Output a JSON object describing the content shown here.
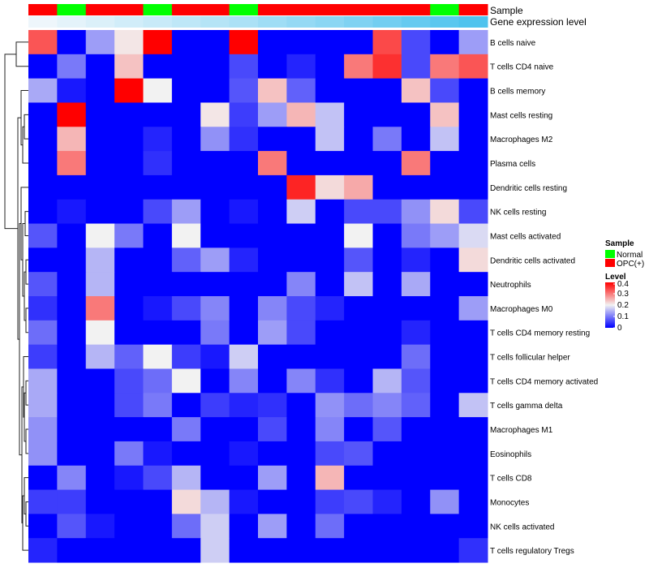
{
  "chart_data": {
    "type": "heatmap",
    "annotation_labels": {
      "sample": "Sample",
      "gene_level": "Gene expression level"
    },
    "sample_groups": [
      "OPC(+)",
      "Normal",
      "OPC(+)",
      "OPC(+)",
      "Normal",
      "OPC(+)",
      "OPC(+)",
      "Normal",
      "OPC(+)",
      "OPC(+)",
      "OPC(+)",
      "OPC(+)",
      "OPC(+)",
      "OPC(+)",
      "Normal",
      "OPC(+)"
    ],
    "gene_expression_level": [
      0.0,
      0.06,
      0.12,
      0.18,
      0.24,
      0.3,
      0.36,
      0.42,
      0.5,
      0.56,
      0.62,
      0.7,
      0.78,
      0.86,
      0.93,
      1.0
    ],
    "rows": [
      "B cells naive",
      "T cells CD4 naive",
      "B cells memory",
      "Mast cells resting",
      "Macrophages M2",
      "Plasma cells",
      "Dendritic cells resting",
      "NK cells resting",
      "Mast cells activated",
      "Dendritic cells activated",
      "Neutrophils",
      "Macrophages M0",
      "T cells CD4 memory resting",
      "T cells follicular helper",
      "T cells CD4 memory activated",
      "T cells gamma delta",
      "Macrophages M1",
      "Eosinophils",
      "T cells CD8",
      "Monocytes",
      "NK cells activated",
      "T cells regulatory  Tregs"
    ],
    "values": [
      [
        0.33,
        0.0,
        0.13,
        0.21,
        0.4,
        0.0,
        0.0,
        0.4,
        0.0,
        0.0,
        0.0,
        0.0,
        0.34,
        0.06,
        0.0,
        0.13
      ],
      [
        0.0,
        0.1,
        0.0,
        0.24,
        0.0,
        0.0,
        0.0,
        0.06,
        0.0,
        0.03,
        0.0,
        0.3,
        0.36,
        0.06,
        0.3,
        0.33
      ],
      [
        0.14,
        0.02,
        0.0,
        0.4,
        0.2,
        0.0,
        0.0,
        0.07,
        0.24,
        0.08,
        0.0,
        0.0,
        0.0,
        0.24,
        0.06,
        0.0
      ],
      [
        0.0,
        0.4,
        0.0,
        0.0,
        0.0,
        0.0,
        0.21,
        0.05,
        0.13,
        0.25,
        0.16,
        0.0,
        0.0,
        0.0,
        0.24,
        0.0
      ],
      [
        0.0,
        0.25,
        0.0,
        0.0,
        0.03,
        0.0,
        0.12,
        0.04,
        0.0,
        0.0,
        0.16,
        0.0,
        0.1,
        0.0,
        0.16,
        0.0
      ],
      [
        0.0,
        0.3,
        0.0,
        0.0,
        0.04,
        0.0,
        0.0,
        0.0,
        0.3,
        0.0,
        0.0,
        0.0,
        0.0,
        0.3,
        0.0,
        0.0
      ],
      [
        0.0,
        0.0,
        0.0,
        0.0,
        0.0,
        0.0,
        0.0,
        0.0,
        0.0,
        0.37,
        0.22,
        0.26,
        0.0,
        0.0,
        0.0,
        0.0
      ],
      [
        0.0,
        0.02,
        0.0,
        0.0,
        0.06,
        0.13,
        0.0,
        0.02,
        0.0,
        0.17,
        0.0,
        0.06,
        0.06,
        0.12,
        0.22,
        0.06
      ],
      [
        0.07,
        0.0,
        0.2,
        0.1,
        0.0,
        0.2,
        0.0,
        0.0,
        0.0,
        0.0,
        0.0,
        0.2,
        0.0,
        0.1,
        0.13,
        0.18
      ],
      [
        0.0,
        0.0,
        0.15,
        0.0,
        0.0,
        0.08,
        0.13,
        0.03,
        0.0,
        0.0,
        0.0,
        0.07,
        0.0,
        0.03,
        0.0,
        0.22
      ],
      [
        0.07,
        0.0,
        0.15,
        0.0,
        0.0,
        0.0,
        0.0,
        0.0,
        0.0,
        0.11,
        0.0,
        0.16,
        0.0,
        0.14,
        0.0,
        0.0
      ],
      [
        0.04,
        0.0,
        0.3,
        0.0,
        0.02,
        0.06,
        0.11,
        0.0,
        0.11,
        0.06,
        0.03,
        0.0,
        0.0,
        0.0,
        0.0,
        0.13
      ],
      [
        0.09,
        0.0,
        0.2,
        0.0,
        0.0,
        0.0,
        0.1,
        0.0,
        0.13,
        0.06,
        0.0,
        0.0,
        0.0,
        0.03,
        0.0,
        0.0
      ],
      [
        0.05,
        0.0,
        0.15,
        0.08,
        0.2,
        0.05,
        0.02,
        0.17,
        0.0,
        0.0,
        0.0,
        0.0,
        0.0,
        0.09,
        0.0,
        0.0
      ],
      [
        0.14,
        0.0,
        0.0,
        0.06,
        0.09,
        0.2,
        0.0,
        0.11,
        0.0,
        0.11,
        0.04,
        0.0,
        0.15,
        0.07,
        0.0,
        0.0
      ],
      [
        0.14,
        0.0,
        0.0,
        0.06,
        0.1,
        0.0,
        0.05,
        0.03,
        0.04,
        0.0,
        0.12,
        0.09,
        0.11,
        0.08,
        0.0,
        0.16
      ],
      [
        0.12,
        0.0,
        0.0,
        0.0,
        0.0,
        0.1,
        0.0,
        0.0,
        0.06,
        0.0,
        0.11,
        0.0,
        0.07,
        0.0,
        0.0,
        0.0
      ],
      [
        0.12,
        0.0,
        0.0,
        0.1,
        0.02,
        0.0,
        0.0,
        0.02,
        0.0,
        0.0,
        0.06,
        0.07,
        0.0,
        0.0,
        0.0,
        0.0
      ],
      [
        0.0,
        0.11,
        0.0,
        0.02,
        0.06,
        0.15,
        0.0,
        0.0,
        0.13,
        0.0,
        0.25,
        0.0,
        0.0,
        0.0,
        0.0,
        0.0
      ],
      [
        0.05,
        0.05,
        0.0,
        0.0,
        0.0,
        0.22,
        0.15,
        0.02,
        0.0,
        0.0,
        0.05,
        0.06,
        0.03,
        0.0,
        0.12,
        0.0
      ],
      [
        0.0,
        0.07,
        0.02,
        0.0,
        0.0,
        0.09,
        0.17,
        0.0,
        0.13,
        0.0,
        0.09,
        0.0,
        0.0,
        0.0,
        0.0,
        0.0
      ],
      [
        0.03,
        0.0,
        0.0,
        0.0,
        0.0,
        0.0,
        0.17,
        0.0,
        0.0,
        0.0,
        0.0,
        0.0,
        0.0,
        0.0,
        0.0,
        0.04
      ]
    ],
    "color_scale": {
      "min": 0,
      "max": 0.4,
      "low": "#0000FF",
      "mid": "#F2F2F2",
      "high": "#FF0000"
    },
    "sample_colors": {
      "Normal": "#00FF00",
      "OPC(+)": "#FF0000"
    },
    "gene_level_colors": {
      "low": "#EEF6FB",
      "high": "#4FC3EE"
    },
    "legend": {
      "sample_title": "Sample",
      "sample_items": [
        "Normal",
        "OPC(+)"
      ],
      "level_title": "Level",
      "level_ticks": [
        "0.4",
        "0.3",
        "0.2",
        "0.1",
        "0"
      ]
    }
  }
}
